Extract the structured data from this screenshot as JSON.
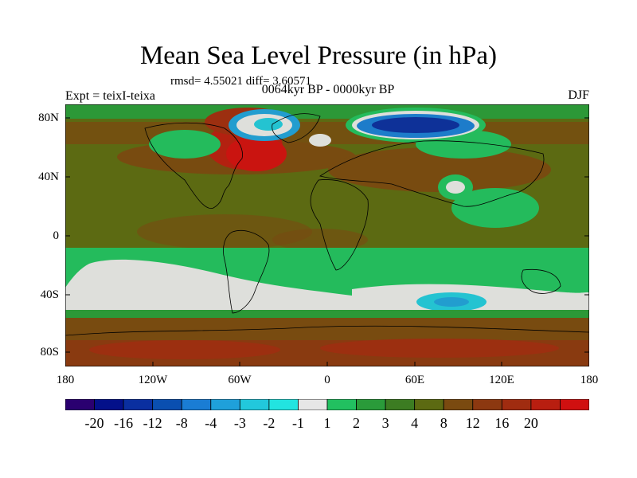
{
  "title": "Mean Sea Level Pressure (in hPa)",
  "stats": "rmsd= 4.55021 diff= 3.60571",
  "subtitle": "0064kyr BP - 0000kyr BP",
  "left_label": "Expt = teixI-teixa",
  "right_label": "DJF",
  "y_ticks": [
    "80N",
    "40N",
    "0",
    "40S",
    "80S"
  ],
  "x_ticks": [
    "180",
    "120W",
    "60W",
    "0",
    "60E",
    "120E",
    "180"
  ],
  "colorbar": {
    "colors": [
      "#2a0070",
      "#03108a",
      "#0a2fa0",
      "#0a4fb0",
      "#1a7dd4",
      "#1fa0da",
      "#22c8dc",
      "#22e4e0",
      "#e6e6e6",
      "#22c060",
      "#2a9b3a",
      "#3c7c22",
      "#5c6a12",
      "#7a4a10",
      "#8c3810",
      "#a02c10",
      "#b81e10",
      "#d01010"
    ],
    "labels": [
      "-20",
      "-16",
      "-12",
      "-8",
      "-4",
      "-3",
      "-2",
      "-1",
      "1",
      "2",
      "3",
      "4",
      "8",
      "12",
      "16",
      "20"
    ]
  },
  "colors": {
    "background_field": "#5c6a12",
    "frame": "#000000"
  }
}
